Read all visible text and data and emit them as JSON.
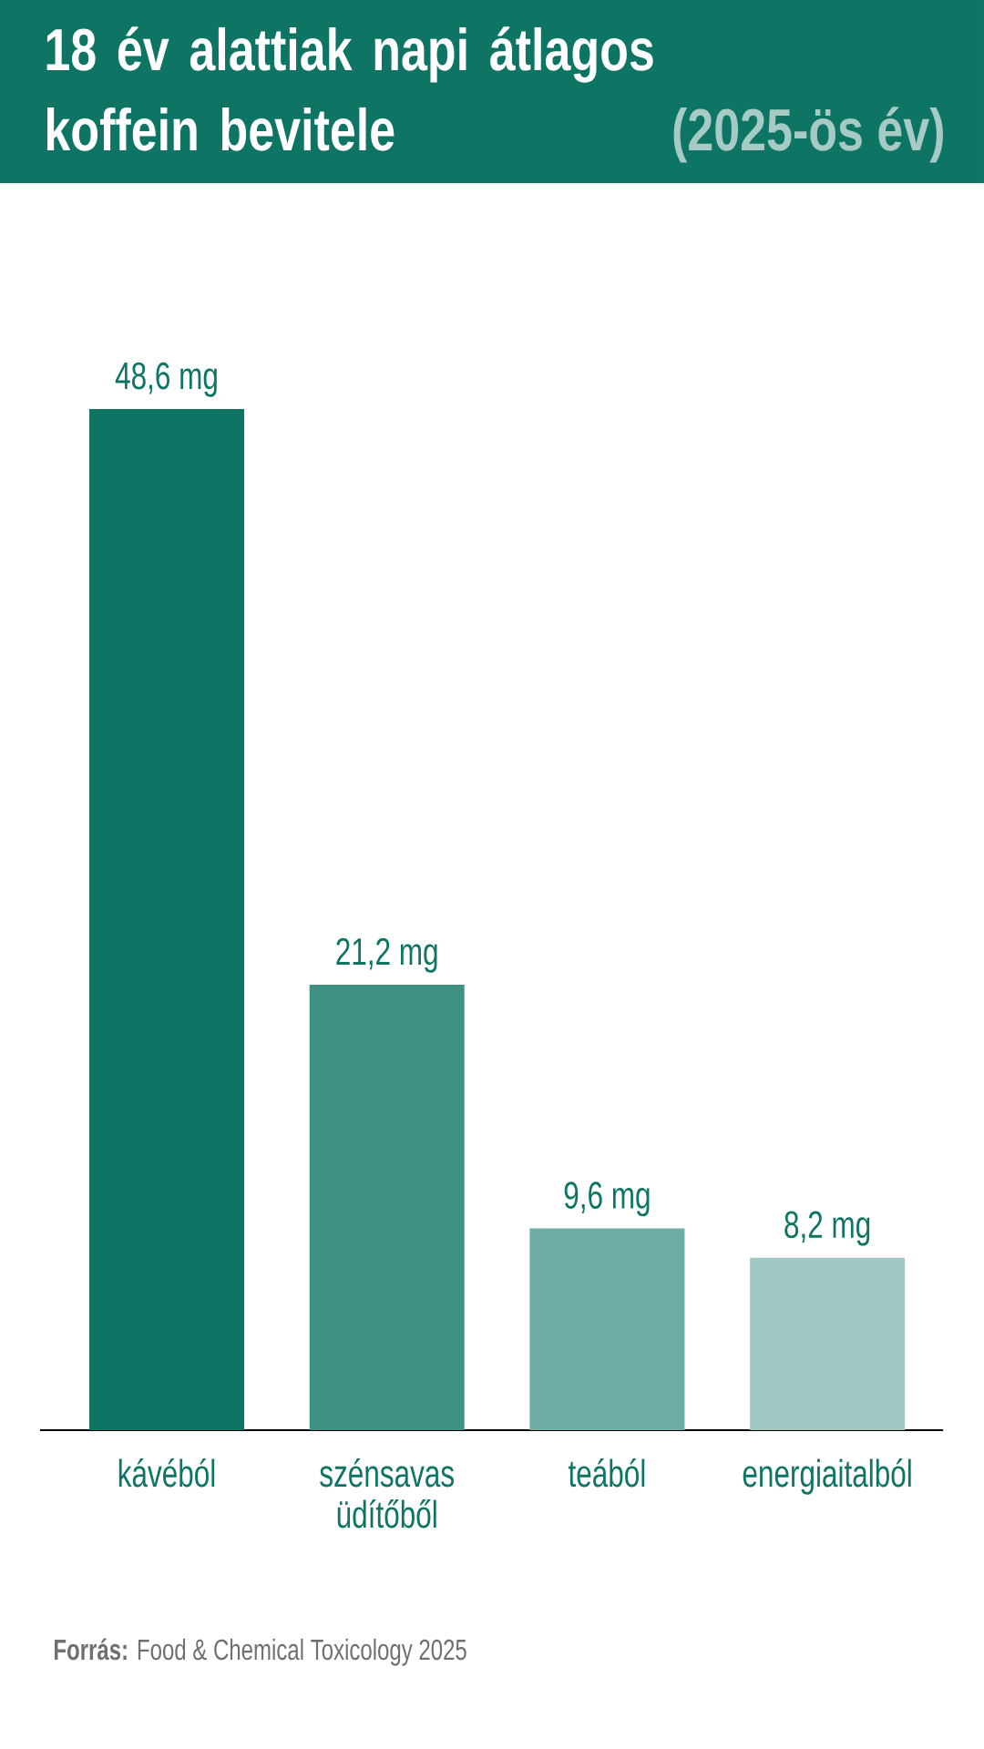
{
  "chart_data": {
    "type": "bar",
    "title": "18 év alattiak napi átlagos koffein bevitele",
    "subtitle": "(2025-ös év)",
    "categories": [
      "kávéból",
      "szénsavas üdítőből",
      "teából",
      "energiaitalból"
    ],
    "values": [
      48.6,
      21.2,
      9.6,
      8.2
    ],
    "colors": [
      "#0e7565",
      "#3f9283",
      "#6dada3",
      "#a0c8c3"
    ],
    "value_labels": [
      "48,6 mg",
      "21,2 mg",
      "9,6 mg",
      "8,2 mg"
    ],
    "tick_labels": "x",
    "annotations": [
      "**Forrás:** Food & Chemical Toxicology 2025"
    ]
  }
}
